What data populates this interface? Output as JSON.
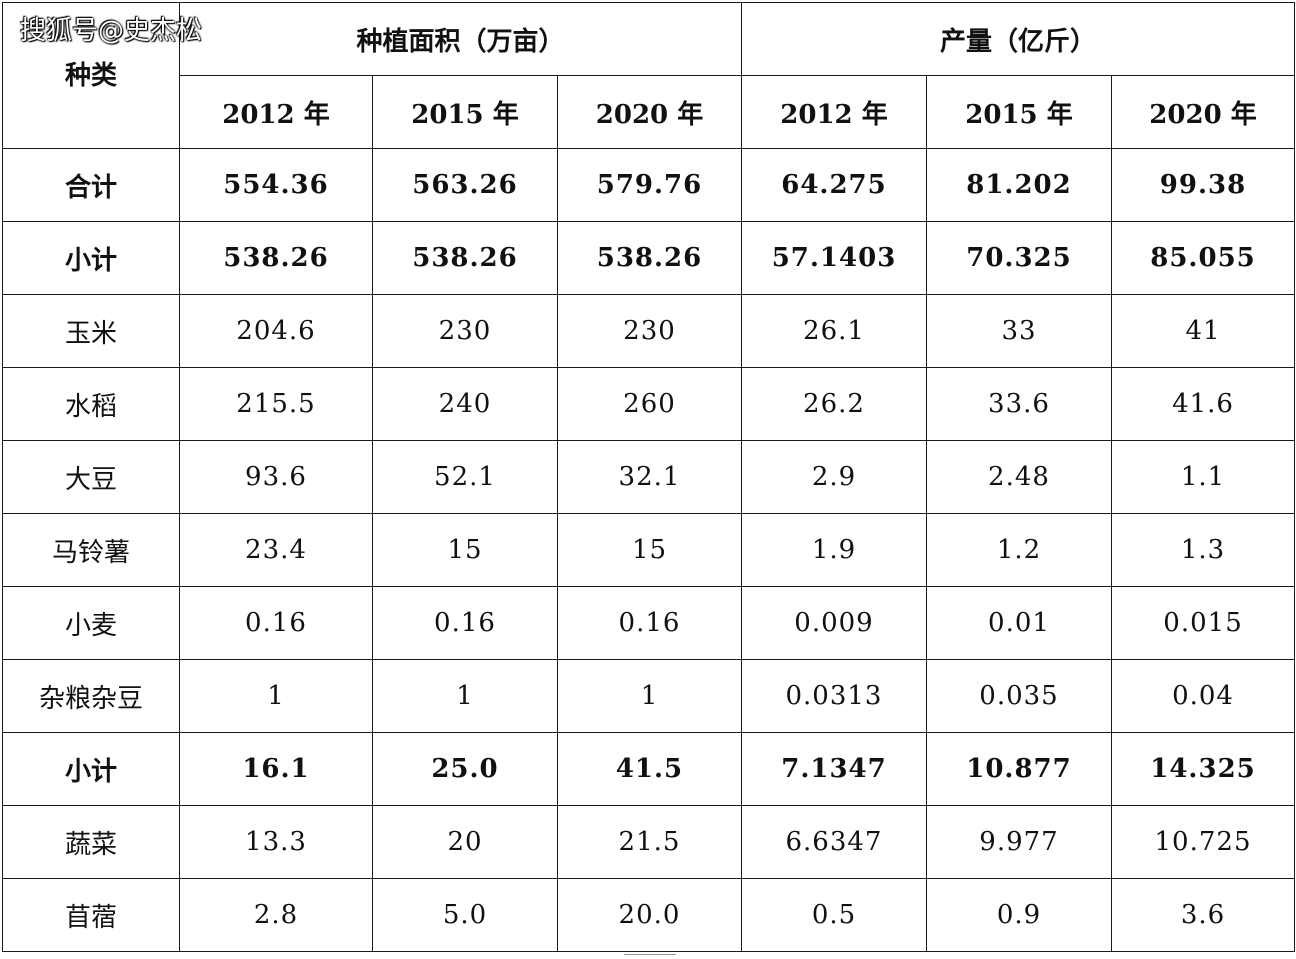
{
  "watermark": "搜狐号@史杰松",
  "header": {
    "kind_label": "种类",
    "area_group": "种植面积（万亩）",
    "yield_group": "产量（亿斤）",
    "years": [
      "2012 年",
      "2015 年",
      "2020 年",
      "2012 年",
      "2015 年",
      "2020 年"
    ]
  },
  "rows": [
    {
      "name": "合计",
      "bold": true,
      "values": [
        "554.36",
        "563.26",
        "579.76",
        "64.275",
        "81.202",
        "99.38"
      ]
    },
    {
      "name": "小计",
      "bold": true,
      "values": [
        "538.26",
        "538.26",
        "538.26",
        "57.1403",
        "70.325",
        "85.055"
      ]
    },
    {
      "name": "玉米",
      "bold": false,
      "values": [
        "204.6",
        "230",
        "230",
        "26.1",
        "33",
        "41"
      ]
    },
    {
      "name": "水稻",
      "bold": false,
      "values": [
        "215.5",
        "240",
        "260",
        "26.2",
        "33.6",
        "41.6"
      ]
    },
    {
      "name": "大豆",
      "bold": false,
      "values": [
        "93.6",
        "52.1",
        "32.1",
        "2.9",
        "2.48",
        "1.1"
      ]
    },
    {
      "name": "马铃薯",
      "bold": false,
      "values": [
        "23.4",
        "15",
        "15",
        "1.9",
        "1.2",
        "1.3"
      ]
    },
    {
      "name": "小麦",
      "bold": false,
      "values": [
        "0.16",
        "0.16",
        "0.16",
        "0.009",
        "0.01",
        "0.015"
      ]
    },
    {
      "name": "杂粮杂豆",
      "bold": false,
      "values": [
        "1",
        "1",
        "1",
        "0.0313",
        "0.035",
        "0.04"
      ]
    },
    {
      "name": "小计",
      "bold": true,
      "values": [
        "16.1",
        "25.0",
        "41.5",
        "7.1347",
        "10.877",
        "14.325"
      ]
    },
    {
      "name": "蔬菜",
      "bold": false,
      "values": [
        "13.3",
        "20",
        "21.5",
        "6.6347",
        "9.977",
        "10.725"
      ]
    },
    {
      "name": "苜蓿",
      "bold": false,
      "values": [
        "2.8",
        "5.0",
        "20.0",
        "0.5",
        "0.9",
        "3.6"
      ]
    }
  ]
}
